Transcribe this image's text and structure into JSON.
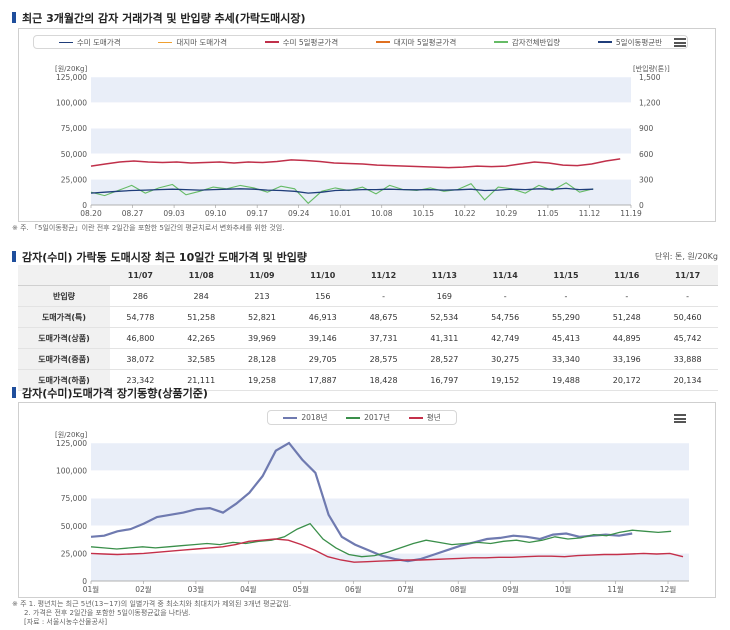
{
  "section1": {
    "title": "최근 3개월간의 감자 거래가격 및 반입량 추세(가락도매시장)",
    "note": "※ 주. 「5일이동평균」이란 전후 2일간을 포함한 5일간의 평균치로서 변화추세를 위한 것임."
  },
  "section2": {
    "title": "감자(수미) 가락동 도매시장 최근 10일간 도매가격 및 반입량",
    "unit": "단위: 톤, 원/20Kg"
  },
  "section3": {
    "title": "감자(수미)도매가격 장기동향(상품기준)",
    "notes": [
      "※ 주 1. 평년치는 최근 5년(13~17)의 일별가격 중 최소치와 최대치가 제외된 3개년 평균값임.",
      "2. 가격은 전후 2일간을 포함한 5일이동평균값을 나타냄.",
      "[자료 : 서울시농수산물공사]"
    ]
  },
  "colors": {
    "suimi": "#1f3d7a",
    "daeji": "#f0a030",
    "suimi_ma": "#c0304a",
    "daeji_ma": "#e07020",
    "supply": "#66bb66",
    "supply_ma": "#1f3d7a",
    "y2018": "#6f7ab0",
    "y2017": "#3a8f4a",
    "normal": "#c4304a",
    "band": "#e9eef8"
  },
  "chart_data": [
    {
      "type": "line",
      "legend": [
        "수미 도매가격",
        "대지마 도매가격",
        "수미 5일평균가격",
        "대지마 5일평균가격",
        "감자전체반입량",
        "5일이동평균반"
      ],
      "ylabel": "원/20Kg",
      "y2label": "반입량(톤)",
      "x_ticks": [
        "08.20",
        "08.27",
        "09.03",
        "09.10",
        "09.17",
        "09.24",
        "10.01",
        "10.08",
        "10.15",
        "10.22",
        "10.29",
        "11.05",
        "11.12",
        "11.19"
      ],
      "ylim": [
        0,
        125000
      ],
      "y_ticks": [
        0,
        25000,
        50000,
        75000,
        100000,
        125000
      ],
      "y2lim": [
        0,
        1500
      ],
      "y2_ticks": [
        0,
        300,
        600,
        900,
        1200,
        1500
      ],
      "series": [
        {
          "name": "수미 5일평균가격",
          "axis": "left",
          "values": [
            38000,
            40000,
            42000,
            43000,
            42000,
            41500,
            42000,
            41000,
            41500,
            42000,
            41000,
            42000,
            41500,
            42500,
            44000,
            43500,
            42500,
            41000,
            40500,
            40000,
            39000,
            38500,
            38000,
            37500,
            37000,
            36500,
            37000,
            38000,
            37500,
            38000,
            40000,
            42000,
            41000,
            39000,
            38500,
            40000,
            43000,
            45000
          ]
        },
        {
          "name": "감자전체반입량",
          "axis": "right",
          "values": [
            150,
            110,
            170,
            230,
            140,
            200,
            240,
            120,
            160,
            210,
            190,
            230,
            200,
            150,
            220,
            190,
            20,
            160,
            200,
            170,
            210,
            130,
            230,
            180,
            170,
            200,
            160,
            180,
            250,
            60,
            210,
            190,
            140,
            230,
            170,
            260,
            150,
            190
          ]
        },
        {
          "name": "5일이동평균반",
          "axis": "right",
          "values": [
            140,
            150,
            160,
            170,
            175,
            180,
            185,
            180,
            175,
            180,
            185,
            190,
            185,
            175,
            170,
            160,
            140,
            150,
            170,
            175,
            180,
            180,
            185,
            180,
            178,
            180,
            175,
            178,
            185,
            170,
            175,
            185,
            180,
            190,
            185,
            195,
            180,
            185
          ]
        }
      ]
    },
    {
      "type": "table",
      "columns": [
        "11/07",
        "11/08",
        "11/09",
        "11/10",
        "11/12",
        "11/13",
        "11/14",
        "11/15",
        "11/16",
        "11/17"
      ],
      "rows": [
        {
          "label": "반입량",
          "values": [
            "286",
            "284",
            "213",
            "156",
            "-",
            "169",
            "-",
            "-",
            "-",
            "-"
          ]
        },
        {
          "label": "도매가격(특)",
          "values": [
            "54,778",
            "51,258",
            "52,821",
            "46,913",
            "48,675",
            "52,534",
            "54,756",
            "55,290",
            "51,248",
            "50,460"
          ]
        },
        {
          "label": "도매가격(상품)",
          "values": [
            "46,800",
            "42,265",
            "39,969",
            "39,146",
            "37,731",
            "41,311",
            "42,749",
            "45,413",
            "44,895",
            "45,742"
          ]
        },
        {
          "label": "도매가격(중품)",
          "values": [
            "38,072",
            "32,585",
            "28,128",
            "29,705",
            "28,575",
            "28,527",
            "30,275",
            "33,340",
            "33,196",
            "33,888"
          ]
        },
        {
          "label": "도매가격(하품)",
          "values": [
            "23,342",
            "21,111",
            "19,258",
            "17,887",
            "18,428",
            "16,797",
            "19,152",
            "19,488",
            "20,172",
            "20,134"
          ]
        }
      ]
    },
    {
      "type": "line",
      "legend": [
        "2018년",
        "2017년",
        "평년"
      ],
      "ylabel": "원/20Kg",
      "x_ticks": [
        "01월",
        "02월",
        "03월",
        "04월",
        "05월",
        "06월",
        "07월",
        "08월",
        "09월",
        "10월",
        "11월",
        "12월"
      ],
      "ylim": [
        0,
        125000
      ],
      "y_ticks": [
        0,
        25000,
        50000,
        75000,
        100000,
        125000
      ],
      "series": [
        {
          "name": "2018년",
          "values": [
            40000,
            41000,
            45000,
            47000,
            52000,
            58000,
            60000,
            62000,
            65000,
            66000,
            62000,
            70000,
            80000,
            95000,
            118000,
            125000,
            110000,
            98000,
            60000,
            40000,
            33000,
            28000,
            23000,
            20000,
            18000,
            20000,
            24000,
            28000,
            32000,
            35000,
            38000,
            39000,
            41000,
            40000,
            38000,
            42000,
            43000,
            40000,
            41000,
            42000,
            41000,
            43000
          ]
        },
        {
          "name": "2017년",
          "values": [
            31000,
            30000,
            29000,
            30000,
            31000,
            30000,
            31000,
            32000,
            33000,
            34000,
            33000,
            35000,
            34000,
            36000,
            37000,
            40000,
            47000,
            52000,
            38000,
            30000,
            24000,
            22000,
            23000,
            26000,
            30000,
            34000,
            37000,
            35000,
            33000,
            34000,
            35000,
            34000,
            36000,
            37000,
            35000,
            37000,
            40000,
            38000,
            39000,
            42000,
            41000,
            44000,
            46000,
            45000,
            44000,
            45000
          ]
        },
        {
          "name": "평년",
          "values": [
            25000,
            24500,
            24000,
            24500,
            25000,
            26000,
            27000,
            28000,
            29000,
            30000,
            31000,
            33000,
            36000,
            37000,
            38000,
            37000,
            33000,
            28000,
            22000,
            19000,
            17000,
            17500,
            18000,
            18500,
            19000,
            19000,
            19500,
            20000,
            20500,
            21000,
            21000,
            21500,
            21500,
            22000,
            22500,
            22500,
            22000,
            23000,
            23500,
            24000,
            24000,
            24500,
            25000,
            24500,
            25000,
            22000
          ]
        }
      ]
    }
  ]
}
